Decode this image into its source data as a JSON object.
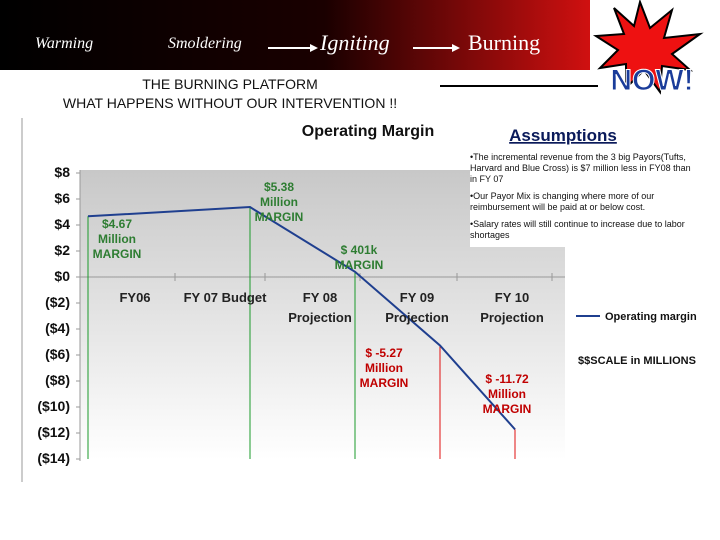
{
  "header": {
    "stages": [
      "Warming",
      "Smoldering",
      "Igniting",
      "Burning"
    ],
    "badge": "NOW!",
    "title": "THE BURNING PLATFORM",
    "subtitle": "WHAT HAPPENS WITHOUT OUR INTERVENTION !!"
  },
  "assumptions": {
    "title": "Assumptions",
    "items": [
      "•The incremental revenue from the 3 big Payors(Tufts, Harvard and Blue Cross) is $7 million less in FY08 than in FY 07",
      "•Our Payor Mix is changing where more of our reimbursement will be paid at or below cost.",
      "•Salary rates will still continue to increase due to labor shortages"
    ]
  },
  "chart_data": {
    "type": "line",
    "title": "Operating Margin",
    "categories": [
      "FY06",
      "FY 07 Budget",
      "FY 08 Projection",
      "FY 09 Projection",
      "FY 10 Projection"
    ],
    "series": [
      {
        "name": "Operating margin",
        "color": "#1f3f8f",
        "values": [
          4.67,
          5.38,
          0.401,
          -5.27,
          -11.72
        ],
        "value_labels": [
          "$4.67 Million MARGIN",
          "$5.38 Million MARGIN",
          "$ 401k MARGIN",
          "$ -5.27 Million MARGIN",
          "$ -11.72 Million MARGIN"
        ]
      }
    ],
    "ylim": [
      -14,
      8
    ],
    "yticks": [
      {
        "value": 8,
        "label": "$8"
      },
      {
        "value": 6,
        "label": "$6"
      },
      {
        "value": 4,
        "label": "$4"
      },
      {
        "value": 2,
        "label": "$2"
      },
      {
        "value": 0,
        "label": "$0"
      },
      {
        "value": -2,
        "label": "($2)"
      },
      {
        "value": -4,
        "label": "($4)"
      },
      {
        "value": -6,
        "label": "($6)"
      },
      {
        "value": -8,
        "label": "($8)"
      },
      {
        "value": -10,
        "label": "($10)"
      },
      {
        "value": -12,
        "label": "($12)"
      },
      {
        "value": -14,
        "label": "($14)"
      }
    ],
    "note": "$$SCALE in MILLIONS"
  }
}
